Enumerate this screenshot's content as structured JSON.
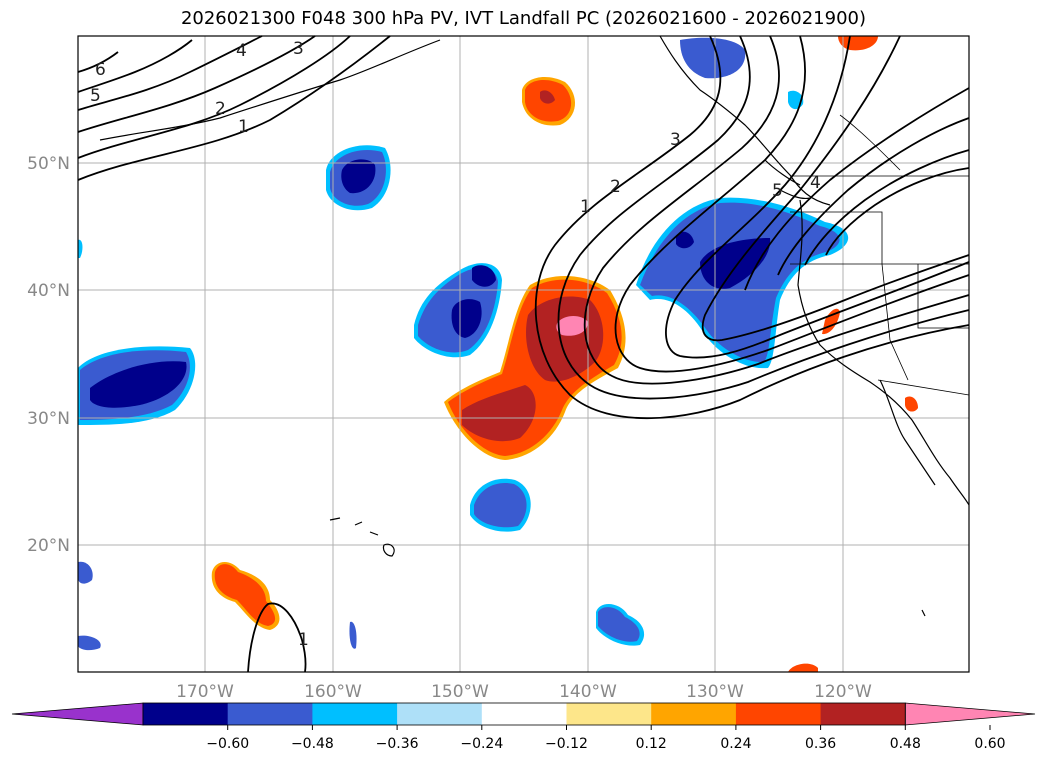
{
  "title": "2026021300 F048 300 hPa PV, IVT Landfall PC (2026021600 - 2026021900)",
  "map": {
    "lat_labels": [
      "50°N",
      "40°N",
      "30°N",
      "20°N"
    ],
    "lon_labels": [
      "170°W",
      "160°W",
      "150°W",
      "140°W",
      "130°W",
      "120°W"
    ],
    "contour_labels": [
      "6",
      "5",
      "4",
      "3",
      "2",
      "1",
      "1",
      "2",
      "3",
      "4",
      "5",
      "1"
    ]
  },
  "colorbar": {
    "colors": [
      "#9932cc",
      "#00008b",
      "#3a5bd0",
      "#00bfff",
      "#aee0f8",
      "#ffffff",
      "#fde68a",
      "#ffa500",
      "#ff4500",
      "#b22222",
      "#ff85b3"
    ],
    "ticks": [
      "−0.60",
      "−0.48",
      "−0.36",
      "−0.24",
      "−0.12",
      "0.12",
      "0.24",
      "0.36",
      "0.48",
      "0.60"
    ]
  },
  "colors": {
    "neg_strong": "#00008b",
    "neg_mid": "#3a5bd0",
    "neg_weak": "#00bfff",
    "pos_weak": "#ffa500",
    "pos_mid": "#ff4500",
    "pos_strong": "#b22222",
    "pos_max": "#ff85b3",
    "grid": "#b0b0b0"
  }
}
